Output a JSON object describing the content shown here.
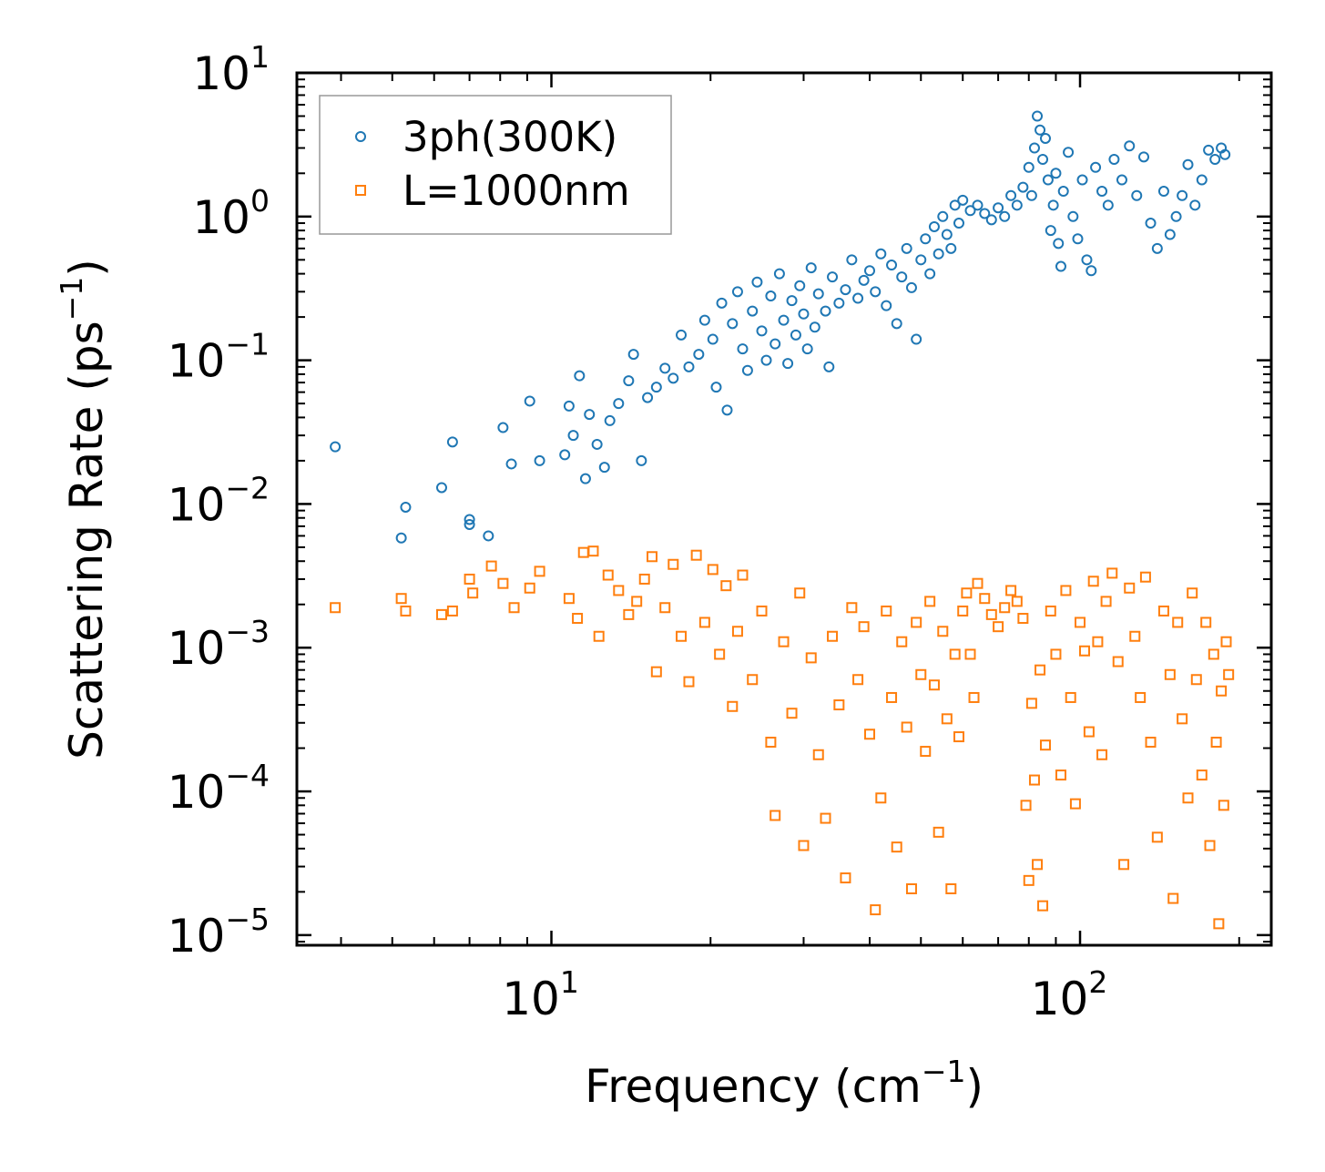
{
  "chart_data": {
    "type": "scatter",
    "xscale": "log",
    "yscale": "log",
    "xlim": [
      3.3,
      230
    ],
    "ylim": [
      8.5e-06,
      10
    ],
    "xlabel": {
      "base": "Frequency (cm",
      "sup": "−1",
      "tail": ")"
    },
    "ylabel": {
      "base": "Scattering Rate (ps",
      "sup": "−1",
      "tail": ")"
    },
    "x_ticks": [
      {
        "value": 10,
        "base": "10",
        "exp": "1"
      },
      {
        "value": 100,
        "base": "10",
        "exp": "2"
      }
    ],
    "y_ticks": [
      {
        "value": 10,
        "base": "10",
        "exp": "1"
      },
      {
        "value": 1,
        "base": "10",
        "exp": "0"
      },
      {
        "value": 0.1,
        "base": "10",
        "exp": "−1"
      },
      {
        "value": 0.01,
        "base": "10",
        "exp": "−2"
      },
      {
        "value": 0.001,
        "base": "10",
        "exp": "−3"
      },
      {
        "value": 0.0001,
        "base": "10",
        "exp": "−4"
      },
      {
        "value": 1e-05,
        "base": "10",
        "exp": "−5"
      }
    ],
    "legend_position": "top-left",
    "series": [
      {
        "name": "3ph(300K)",
        "color": "#1f77b4",
        "marker": "circle",
        "points": [
          [
            3.9,
            0.025
          ],
          [
            5.2,
            0.0058
          ],
          [
            5.3,
            0.0095
          ],
          [
            6.2,
            0.013
          ],
          [
            6.5,
            0.027
          ],
          [
            7.0,
            0.0072
          ],
          [
            7.0,
            0.0078
          ],
          [
            7.6,
            0.006
          ],
          [
            8.1,
            0.034
          ],
          [
            8.4,
            0.019
          ],
          [
            9.1,
            0.052
          ],
          [
            9.5,
            0.02
          ],
          [
            10.6,
            0.022
          ],
          [
            10.8,
            0.048
          ],
          [
            11.0,
            0.03
          ],
          [
            11.3,
            0.078
          ],
          [
            11.6,
            0.015
          ],
          [
            11.8,
            0.042
          ],
          [
            12.2,
            0.026
          ],
          [
            12.6,
            0.018
          ],
          [
            12.9,
            0.038
          ],
          [
            13.4,
            0.05
          ],
          [
            14.0,
            0.072
          ],
          [
            14.3,
            0.11
          ],
          [
            14.8,
            0.02
          ],
          [
            15.2,
            0.055
          ],
          [
            15.8,
            0.065
          ],
          [
            16.4,
            0.088
          ],
          [
            17.0,
            0.075
          ],
          [
            17.6,
            0.15
          ],
          [
            18.2,
            0.09
          ],
          [
            19.0,
            0.11
          ],
          [
            19.5,
            0.19
          ],
          [
            20.2,
            0.14
          ],
          [
            20.5,
            0.065
          ],
          [
            21.0,
            0.25
          ],
          [
            21.5,
            0.045
          ],
          [
            22.0,
            0.18
          ],
          [
            22.5,
            0.3
          ],
          [
            23.0,
            0.12
          ],
          [
            23.5,
            0.085
          ],
          [
            24.0,
            0.22
          ],
          [
            24.5,
            0.35
          ],
          [
            25.0,
            0.16
          ],
          [
            25.5,
            0.1
          ],
          [
            26.0,
            0.28
          ],
          [
            26.5,
            0.13
          ],
          [
            27.0,
            0.4
          ],
          [
            27.5,
            0.19
          ],
          [
            28.0,
            0.095
          ],
          [
            28.5,
            0.26
          ],
          [
            29.0,
            0.15
          ],
          [
            29.5,
            0.33
          ],
          [
            30.0,
            0.21
          ],
          [
            30.5,
            0.12
          ],
          [
            31.0,
            0.44
          ],
          [
            31.5,
            0.17
          ],
          [
            32.0,
            0.29
          ],
          [
            33.0,
            0.22
          ],
          [
            33.5,
            0.09
          ],
          [
            34.0,
            0.38
          ],
          [
            35.0,
            0.25
          ],
          [
            36.0,
            0.31
          ],
          [
            37.0,
            0.5
          ],
          [
            38.0,
            0.27
          ],
          [
            39.0,
            0.36
          ],
          [
            40.0,
            0.42
          ],
          [
            41.0,
            0.3
          ],
          [
            42.0,
            0.55
          ],
          [
            43.0,
            0.24
          ],
          [
            44.0,
            0.46
          ],
          [
            45.0,
            0.18
          ],
          [
            46.0,
            0.38
          ],
          [
            47.0,
            0.6
          ],
          [
            48.0,
            0.32
          ],
          [
            49.0,
            0.14
          ],
          [
            50.0,
            0.5
          ],
          [
            51.0,
            0.7
          ],
          [
            52.0,
            0.4
          ],
          [
            53.0,
            0.85
          ],
          [
            54.0,
            0.55
          ],
          [
            55.0,
            1.0
          ],
          [
            56.0,
            0.75
          ],
          [
            57.0,
            0.6
          ],
          [
            58.0,
            1.2
          ],
          [
            59.0,
            0.9
          ],
          [
            60.0,
            1.3
          ],
          [
            62.0,
            1.1
          ],
          [
            64.0,
            1.2
          ],
          [
            66.0,
            1.05
          ],
          [
            68.0,
            0.95
          ],
          [
            70.0,
            1.15
          ],
          [
            72.0,
            1.0
          ],
          [
            74.0,
            1.4
          ],
          [
            76.0,
            1.2
          ],
          [
            78.0,
            1.6
          ],
          [
            80.0,
            2.2
          ],
          [
            81.0,
            1.4
          ],
          [
            82.0,
            3.0
          ],
          [
            83.0,
            5.0
          ],
          [
            84.0,
            4.0
          ],
          [
            85.0,
            2.5
          ],
          [
            86.0,
            3.5
          ],
          [
            87.0,
            1.8
          ],
          [
            88.0,
            0.8
          ],
          [
            89.0,
            1.2
          ],
          [
            90.0,
            2.0
          ],
          [
            91.0,
            0.65
          ],
          [
            92.0,
            0.45
          ],
          [
            93.0,
            1.5
          ],
          [
            95.0,
            2.8
          ],
          [
            97.0,
            1.0
          ],
          [
            99.0,
            0.7
          ],
          [
            101.0,
            1.8
          ],
          [
            103.0,
            0.5
          ],
          [
            105.0,
            0.42
          ],
          [
            107.0,
            2.2
          ],
          [
            110.0,
            1.5
          ],
          [
            113.0,
            1.2
          ],
          [
            116.0,
            2.5
          ],
          [
            120.0,
            1.8
          ],
          [
            124.0,
            3.1
          ],
          [
            128.0,
            1.4
          ],
          [
            132.0,
            2.6
          ],
          [
            136.0,
            0.9
          ],
          [
            140.0,
            0.6
          ],
          [
            144.0,
            1.5
          ],
          [
            148.0,
            0.75
          ],
          [
            152.0,
            1.0
          ],
          [
            156.0,
            1.4
          ],
          [
            160.0,
            2.3
          ],
          [
            165.0,
            1.2
          ],
          [
            170.0,
            1.8
          ],
          [
            175.0,
            2.9
          ],
          [
            180.0,
            2.5
          ],
          [
            185.0,
            3.0
          ],
          [
            188.0,
            2.7
          ]
        ]
      },
      {
        "name": "L=1000nm",
        "color": "#ff7f0e",
        "marker": "square",
        "points": [
          [
            3.9,
            0.0019
          ],
          [
            5.2,
            0.0022
          ],
          [
            5.3,
            0.0018
          ],
          [
            6.2,
            0.0017
          ],
          [
            6.5,
            0.0018
          ],
          [
            7.0,
            0.003
          ],
          [
            7.1,
            0.0024
          ],
          [
            7.7,
            0.0037
          ],
          [
            8.1,
            0.0028
          ],
          [
            8.5,
            0.0019
          ],
          [
            9.1,
            0.0026
          ],
          [
            9.5,
            0.0034
          ],
          [
            10.8,
            0.0022
          ],
          [
            11.2,
            0.0016
          ],
          [
            11.5,
            0.0046
          ],
          [
            12.0,
            0.0047
          ],
          [
            12.3,
            0.0012
          ],
          [
            12.8,
            0.0032
          ],
          [
            13.4,
            0.0025
          ],
          [
            14.0,
            0.0017
          ],
          [
            14.5,
            0.0021
          ],
          [
            15.0,
            0.003
          ],
          [
            15.5,
            0.0043
          ],
          [
            15.8,
            0.00068
          ],
          [
            16.4,
            0.0019
          ],
          [
            17.0,
            0.0038
          ],
          [
            17.6,
            0.0012
          ],
          [
            18.2,
            0.00058
          ],
          [
            18.8,
            0.0044
          ],
          [
            19.5,
            0.0015
          ],
          [
            20.2,
            0.0035
          ],
          [
            20.8,
            0.0009
          ],
          [
            21.4,
            0.0027
          ],
          [
            22.0,
            0.00039
          ],
          [
            22.5,
            0.0013
          ],
          [
            23.0,
            0.0032
          ],
          [
            24.0,
            0.0006
          ],
          [
            25.0,
            0.0018
          ],
          [
            26.0,
            0.00022
          ],
          [
            26.5,
            6.8e-05
          ],
          [
            27.5,
            0.0011
          ],
          [
            28.5,
            0.00035
          ],
          [
            29.5,
            0.0024
          ],
          [
            30.0,
            4.2e-05
          ],
          [
            31.0,
            0.00085
          ],
          [
            32.0,
            0.00018
          ],
          [
            33.0,
            6.5e-05
          ],
          [
            34.0,
            0.0012
          ],
          [
            35.0,
            0.0004
          ],
          [
            36.0,
            2.5e-05
          ],
          [
            37.0,
            0.0019
          ],
          [
            38.0,
            0.0006
          ],
          [
            39.0,
            0.0014
          ],
          [
            40.0,
            0.00025
          ],
          [
            41.0,
            1.5e-05
          ],
          [
            42.0,
            9e-05
          ],
          [
            43.0,
            0.0018
          ],
          [
            44.0,
            0.00045
          ],
          [
            45.0,
            4.1e-05
          ],
          [
            46.0,
            0.0011
          ],
          [
            47.0,
            0.00028
          ],
          [
            48.0,
            2.1e-05
          ],
          [
            49.0,
            0.0015
          ],
          [
            50.0,
            0.00065
          ],
          [
            51.0,
            0.00019
          ],
          [
            52.0,
            0.0021
          ],
          [
            53.0,
            0.00055
          ],
          [
            54.0,
            5.2e-05
          ],
          [
            55.0,
            0.0013
          ],
          [
            56.0,
            0.00032
          ],
          [
            57.0,
            2.1e-05
          ],
          [
            58.0,
            0.0009
          ],
          [
            59.0,
            0.00024
          ],
          [
            60.0,
            0.0018
          ],
          [
            61.0,
            0.0024
          ],
          [
            62.0,
            0.0009
          ],
          [
            63.0,
            0.00045
          ],
          [
            64.0,
            0.0028
          ],
          [
            66.0,
            0.0022
          ],
          [
            68.0,
            0.0017
          ],
          [
            70.0,
            0.0014
          ],
          [
            72.0,
            0.0019
          ],
          [
            74.0,
            0.0025
          ],
          [
            76.0,
            0.0021
          ],
          [
            78.0,
            0.0016
          ],
          [
            79.0,
            8e-05
          ],
          [
            80.0,
            2.4e-05
          ],
          [
            81.0,
            0.00041
          ],
          [
            82.0,
            0.00012
          ],
          [
            83.0,
            3.1e-05
          ],
          [
            84.0,
            0.0007
          ],
          [
            85.0,
            1.6e-05
          ],
          [
            86.0,
            0.00021
          ],
          [
            88.0,
            0.0018
          ],
          [
            90.0,
            0.0009
          ],
          [
            92.0,
            0.00013
          ],
          [
            94.0,
            0.0025
          ],
          [
            96.0,
            0.00045
          ],
          [
            98.0,
            8.2e-05
          ],
          [
            100.0,
            0.0015
          ],
          [
            102.0,
            0.00095
          ],
          [
            104.0,
            0.00026
          ],
          [
            106.0,
            0.0029
          ],
          [
            108.0,
            0.0011
          ],
          [
            110.0,
            0.00018
          ],
          [
            112.0,
            0.0021
          ],
          [
            115.0,
            0.0033
          ],
          [
            118.0,
            0.0008
          ],
          [
            121.0,
            3.1e-05
          ],
          [
            124.0,
            0.0026
          ],
          [
            127.0,
            0.0012
          ],
          [
            130.0,
            0.00045
          ],
          [
            133.0,
            0.0031
          ],
          [
            136.0,
            0.00022
          ],
          [
            140.0,
            4.8e-05
          ],
          [
            144.0,
            0.0018
          ],
          [
            148.0,
            0.00065
          ],
          [
            150.0,
            1.8e-05
          ],
          [
            153.0,
            0.0015
          ],
          [
            156.0,
            0.00032
          ],
          [
            160.0,
            9e-05
          ],
          [
            163.0,
            0.0024
          ],
          [
            166.0,
            0.0006
          ],
          [
            170.0,
            0.00013
          ],
          [
            173.0,
            0.0015
          ],
          [
            176.0,
            4.2e-05
          ],
          [
            179.0,
            0.0009
          ],
          [
            181.0,
            0.00022
          ],
          [
            183.0,
            1.2e-05
          ],
          [
            185.0,
            0.0005
          ],
          [
            187.0,
            8e-05
          ],
          [
            189.0,
            0.0011
          ],
          [
            191.0,
            0.00065
          ]
        ]
      }
    ]
  }
}
